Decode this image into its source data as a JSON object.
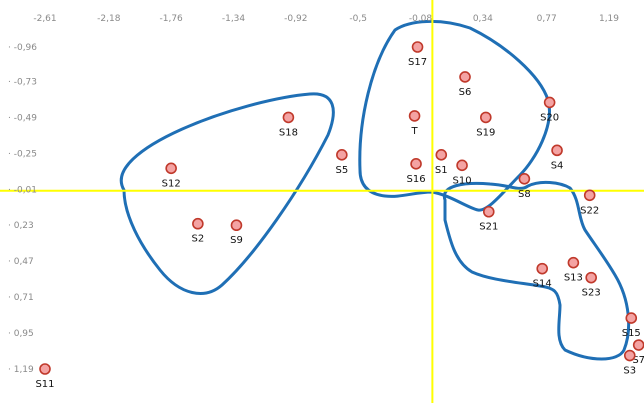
{
  "chart_data": {
    "type": "scatter",
    "title": "",
    "xlabel": "",
    "ylabel": "",
    "xlim": [
      -2.61,
      1.4
    ],
    "ylim": [
      -1.12,
      1.3
    ],
    "y_axis_inverted": true,
    "grid": false,
    "legend": "none",
    "x_ticks": [
      -2.61,
      -2.18,
      -1.76,
      -1.34,
      -0.92,
      -0.5,
      -0.08,
      0.34,
      0.77,
      1.19
    ],
    "x_tick_labels": [
      "-2,61",
      "-2,18",
      "-1,76",
      "-1,34",
      "-0,92",
      "-0,5",
      "-0,08",
      "0,34",
      "0,77",
      "1,19"
    ],
    "y_ticks": [
      -0.96,
      -0.73,
      -0.49,
      -0.25,
      -0.01,
      0.23,
      0.47,
      0.71,
      0.95,
      1.19
    ],
    "y_tick_labels": [
      "-0,96",
      "-0,73",
      "-0,49",
      "-0,25",
      "-0,01",
      "0,23",
      "0,47",
      "0,71",
      "0,95",
      "1,19"
    ],
    "axis_color": "#ffff00",
    "point_fill": "#f4a3a3",
    "point_stroke": "#c0392b",
    "group_color": "#1f6fb5",
    "points": [
      {
        "label": "S17",
        "x": -0.1,
        "y": -0.96
      },
      {
        "label": "S6",
        "x": 0.22,
        "y": -0.76
      },
      {
        "label": "S20",
        "x": 0.79,
        "y": -0.59
      },
      {
        "label": "S18",
        "x": -0.97,
        "y": -0.49
      },
      {
        "label": "T",
        "x": -0.12,
        "y": -0.5
      },
      {
        "label": "S19",
        "x": 0.36,
        "y": -0.49
      },
      {
        "label": "S4",
        "x": 0.84,
        "y": -0.27
      },
      {
        "label": "S5",
        "x": -0.61,
        "y": -0.24
      },
      {
        "label": "S16",
        "x": -0.11,
        "y": -0.18
      },
      {
        "label": "S1",
        "x": 0.06,
        "y": -0.24
      },
      {
        "label": "S10",
        "x": 0.2,
        "y": -0.17
      },
      {
        "label": "S12",
        "x": -1.76,
        "y": -0.15
      },
      {
        "label": "S8",
        "x": 0.62,
        "y": -0.08
      },
      {
        "label": "S22",
        "x": 1.06,
        "y": 0.03
      },
      {
        "label": "S21",
        "x": 0.38,
        "y": 0.14
      },
      {
        "label": "S2",
        "x": -1.58,
        "y": 0.22
      },
      {
        "label": "S9",
        "x": -1.32,
        "y": 0.23
      },
      {
        "label": "S13",
        "x": 0.95,
        "y": 0.48
      },
      {
        "label": "S14",
        "x": 0.74,
        "y": 0.52
      },
      {
        "label": "S23",
        "x": 1.07,
        "y": 0.58
      },
      {
        "label": "S15",
        "x": 1.34,
        "y": 0.85
      },
      {
        "label": "S7",
        "x": 1.39,
        "y": 1.03
      },
      {
        "label": "S3",
        "x": 1.33,
        "y": 1.1
      },
      {
        "label": "S11",
        "x": -2.61,
        "y": 1.19
      }
    ]
  }
}
